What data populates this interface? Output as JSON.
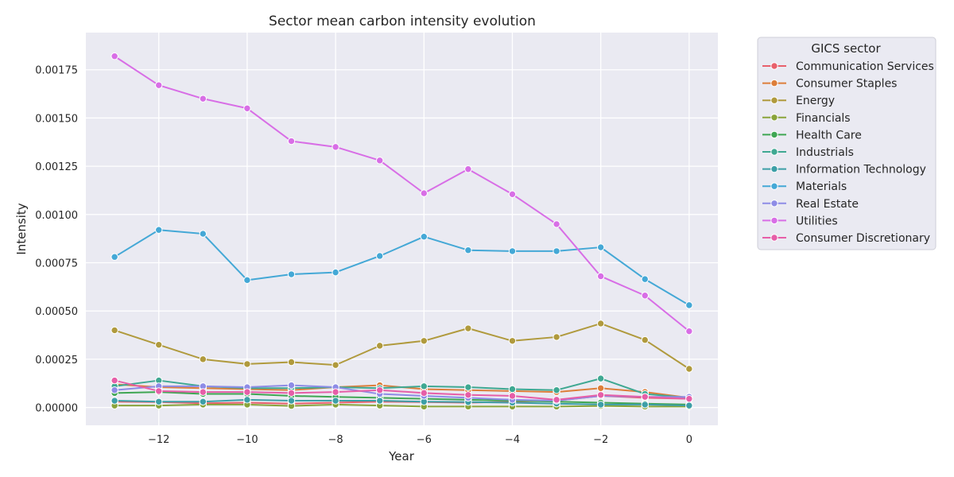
{
  "chart_data": {
    "type": "line",
    "title": "Sector mean carbon intensity evolution",
    "xlabel": "Year",
    "ylabel": "Intensity",
    "xlim": [
      -13.65,
      0.65
    ],
    "ylim": [
      -9.25e-05,
      0.0019425
    ],
    "x_ticks": [
      -12,
      -10,
      -8,
      -6,
      -4,
      -2,
      0
    ],
    "x_tick_labels": [
      "−12",
      "−10",
      "−8",
      "−6",
      "−4",
      "−2",
      "0"
    ],
    "y_ticks": [
      0,
      0.00025,
      0.0005,
      0.00075,
      0.001,
      0.00125,
      0.0015,
      0.00175
    ],
    "y_tick_labels": [
      "0.00000",
      "0.00025",
      "0.00050",
      "0.00075",
      "0.00100",
      "0.00125",
      "0.00150",
      "0.00175"
    ],
    "grid": true,
    "legend": {
      "title": "GICS sector",
      "placement": "outside-right"
    },
    "x": [
      -13,
      -12,
      -11,
      -10,
      -9,
      -8,
      -7,
      -6,
      -5,
      -4,
      -3,
      -2,
      -1,
      0
    ],
    "series": [
      {
        "name": "Communication Services",
        "color": "#e8606b",
        "values": [
          3e-05,
          2.8e-05,
          2.2e-05,
          2.5e-05,
          2e-05,
          2.5e-05,
          3e-05,
          2.8e-05,
          2.5e-05,
          3e-05,
          3.5e-05,
          6e-05,
          5e-05,
          4.5e-05
        ]
      },
      {
        "name": "Consumer Staples",
        "color": "#dd7e3a",
        "values": [
          0.00012,
          0.000105,
          0.0001,
          9.5e-05,
          9e-05,
          0.000105,
          0.000115,
          9.5e-05,
          9e-05,
          8.5e-05,
          8e-05,
          0.0001,
          8e-05,
          5e-05
        ]
      },
      {
        "name": "Energy",
        "color": "#b09a3d",
        "values": [
          0.0004,
          0.000325,
          0.00025,
          0.000225,
          0.000235,
          0.00022,
          0.00032,
          0.000345,
          0.00041,
          0.000345,
          0.000365,
          0.000435,
          0.00035,
          0.0002
        ]
      },
      {
        "name": "Financials",
        "color": "#8aa43b",
        "values": [
          1e-05,
          1e-05,
          1.5e-05,
          1.5e-05,
          8e-06,
          1.5e-05,
          1e-05,
          5e-06,
          5e-06,
          5e-06,
          5e-06,
          8e-06,
          5e-06,
          5e-06
        ]
      },
      {
        "name": "Health Care",
        "color": "#3fa653",
        "values": [
          7.5e-05,
          8e-05,
          7e-05,
          7e-05,
          6e-05,
          5.5e-05,
          5e-05,
          4.5e-05,
          4e-05,
          3.5e-05,
          3e-05,
          2.5e-05,
          2e-05,
          1.5e-05
        ]
      },
      {
        "name": "Industrials",
        "color": "#3fa892",
        "values": [
          0.00011,
          0.00014,
          0.00011,
          0.0001,
          0.0001,
          0.000105,
          0.0001,
          0.00011,
          0.000105,
          9.5e-05,
          9e-05,
          0.00015,
          7e-05,
          5e-05
        ]
      },
      {
        "name": "Information Technology",
        "color": "#3d9fa7",
        "values": [
          3.5e-05,
          3e-05,
          3e-05,
          4e-05,
          3.5e-05,
          3.5e-05,
          3.5e-05,
          3e-05,
          2.8e-05,
          2.5e-05,
          2e-05,
          1.5e-05,
          1.5e-05,
          1e-05
        ]
      },
      {
        "name": "Materials",
        "color": "#44a8d6",
        "values": [
          0.00078,
          0.00092,
          0.0009,
          0.00066,
          0.00069,
          0.0007,
          0.000785,
          0.000885,
          0.000815,
          0.00081,
          0.00081,
          0.00083,
          0.000665,
          0.00053
        ]
      },
      {
        "name": "Real Estate",
        "color": "#8e8ce6",
        "values": [
          9e-05,
          0.00011,
          0.00011,
          0.000105,
          0.000115,
          0.000105,
          7e-05,
          6e-05,
          5e-05,
          4e-05,
          3.5e-05,
          6e-05,
          5.5e-05,
          5.5e-05
        ]
      },
      {
        "name": "Utilities",
        "color": "#d86ee6",
        "values": [
          0.00182,
          0.00167,
          0.0016,
          0.00155,
          0.00138,
          0.00135,
          0.00128,
          0.00111,
          0.001235,
          0.001105,
          0.00095,
          0.00068,
          0.00058,
          0.000395
        ]
      },
      {
        "name": "Consumer Discretionary",
        "color": "#e65ea8",
        "values": [
          0.00014,
          8.5e-05,
          8e-05,
          8e-05,
          7.5e-05,
          8e-05,
          9e-05,
          7.5e-05,
          6.5e-05,
          6e-05,
          4e-05,
          6.5e-05,
          5.5e-05,
          4.5e-05
        ]
      }
    ]
  }
}
